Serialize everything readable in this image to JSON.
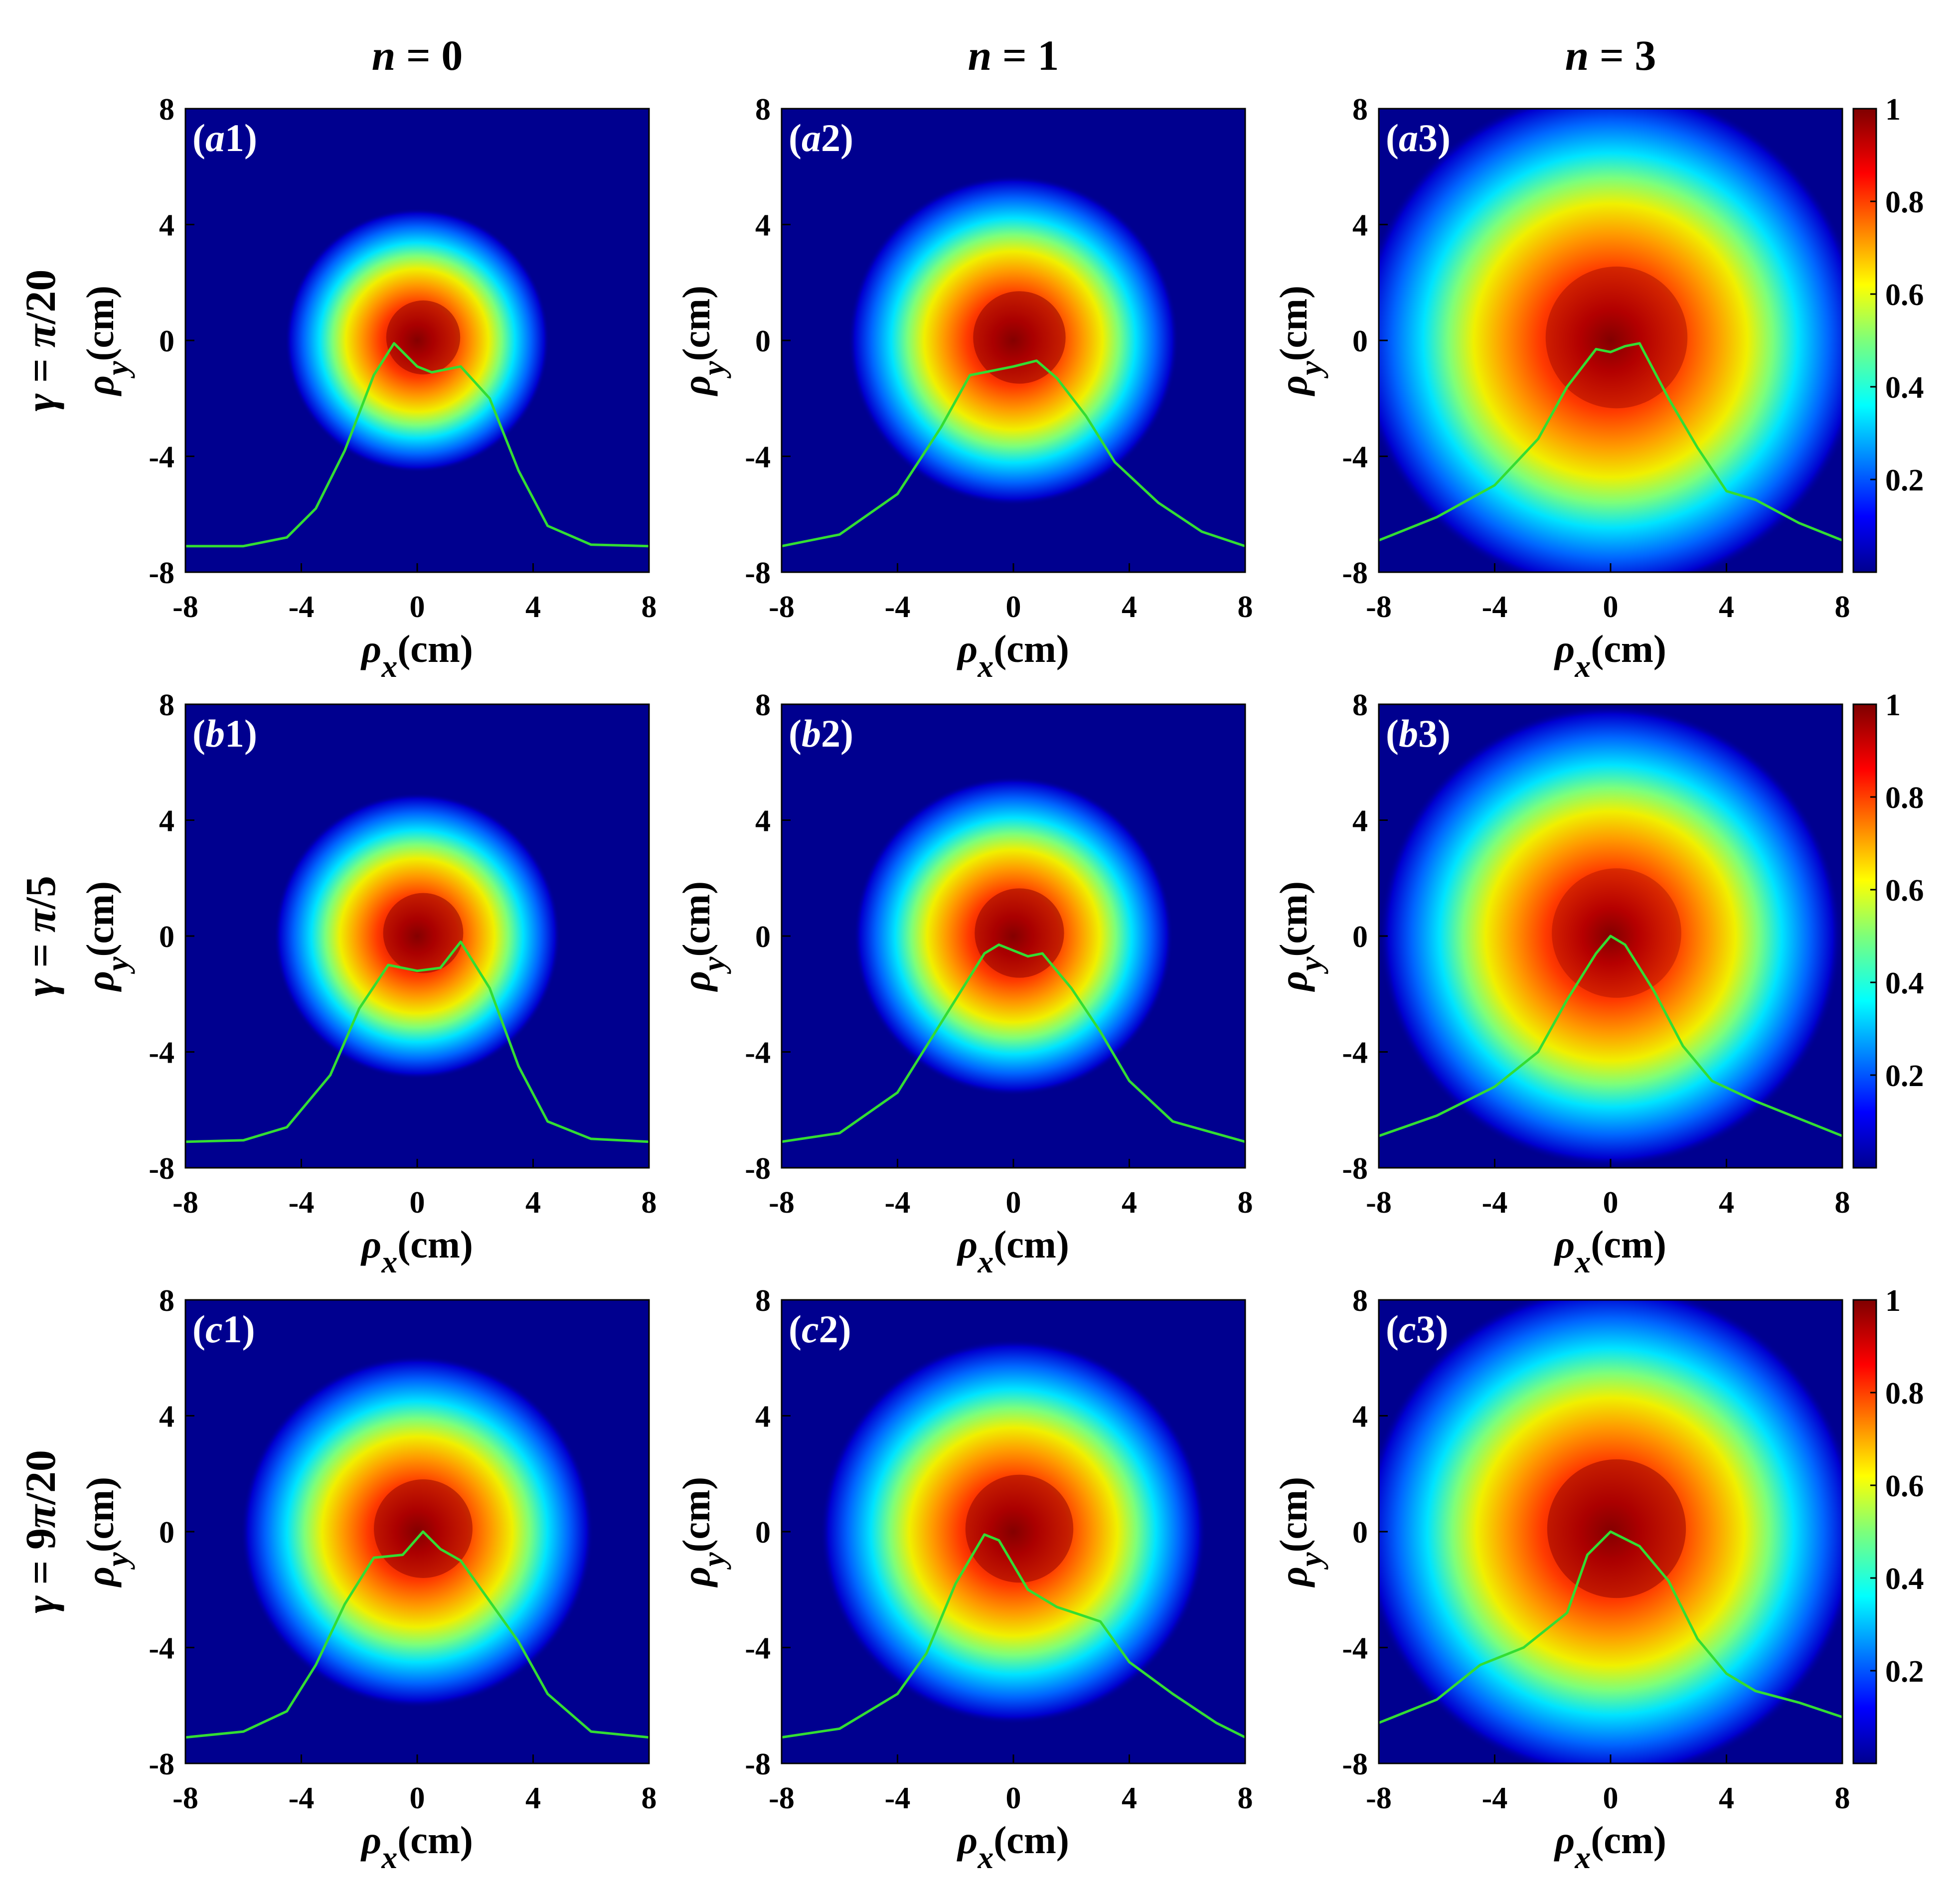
{
  "chart_data": {
    "type": "heatmap",
    "columns": [
      {
        "label": "n = 0",
        "var": "n",
        "eq": " = ",
        "val": "0"
      },
      {
        "label": "n = 1",
        "var": "n",
        "eq": " = ",
        "val": "1"
      },
      {
        "label": "n = 3",
        "var": "n",
        "eq": " = ",
        "val": "3"
      }
    ],
    "rows": [
      {
        "label": "γ = π/20",
        "parts": [
          "γ",
          " = ",
          "π",
          "/20"
        ]
      },
      {
        "label": "γ = π/5",
        "parts": [
          "γ",
          " = ",
          "π",
          "/5"
        ]
      },
      {
        "label": "γ = 9π/20",
        "parts": [
          "γ",
          " = 9",
          "π",
          "/20"
        ]
      }
    ],
    "xlabel": {
      "sym": "ρ",
      "sub": "x",
      "unit": "(cm)"
    },
    "ylabel": {
      "sym": "ρ",
      "sub": "y",
      "unit": "(cm)"
    },
    "xlim": [
      -8,
      8
    ],
    "ylim": [
      -8,
      8
    ],
    "xticks": [
      "-8",
      "-4",
      "0",
      "4",
      "8"
    ],
    "yticks": [
      "8",
      "4",
      "0",
      "-4",
      "-8"
    ],
    "colorbar": {
      "range": [
        0,
        1
      ],
      "ticks": [
        "1",
        "0.8",
        "0.6",
        "0.4",
        "0.2"
      ],
      "colormap": "jet"
    },
    "colors": {
      "profile_line": "#33dd33",
      "panel_label": "#ffffff"
    },
    "panels": [
      {
        "label_pre": "(",
        "label_letter": "a",
        "label_num": "1",
        "label_post": ")",
        "row": 0,
        "col": 0,
        "sigma": 2.4,
        "core": 0.95,
        "profile": [
          [
            -8,
            -7.1
          ],
          [
            -6,
            -7.1
          ],
          [
            -4.5,
            -6.8
          ],
          [
            -3.5,
            -5.8
          ],
          [
            -2.5,
            -3.8
          ],
          [
            -1.5,
            -1.2
          ],
          [
            -0.8,
            -0.1
          ],
          [
            0,
            -0.9
          ],
          [
            0.5,
            -1.1
          ],
          [
            1.5,
            -0.9
          ],
          [
            2.5,
            -2.0
          ],
          [
            3.5,
            -4.5
          ],
          [
            4.5,
            -6.4
          ],
          [
            6,
            -7.05
          ],
          [
            8,
            -7.1
          ]
        ]
      },
      {
        "label_pre": "(",
        "label_letter": "a",
        "label_num": "2",
        "label_post": ")",
        "row": 0,
        "col": 1,
        "sigma": 3.0,
        "core": 0.95,
        "profile": [
          [
            -8,
            -7.1
          ],
          [
            -6,
            -6.7
          ],
          [
            -4,
            -5.3
          ],
          [
            -2.5,
            -3.0
          ],
          [
            -1.5,
            -1.2
          ],
          [
            0,
            -0.9
          ],
          [
            0.8,
            -0.7
          ],
          [
            1.5,
            -1.3
          ],
          [
            2.5,
            -2.6
          ],
          [
            3.5,
            -4.2
          ],
          [
            5,
            -5.6
          ],
          [
            6.5,
            -6.6
          ],
          [
            8,
            -7.1
          ]
        ]
      },
      {
        "label_pre": "(",
        "label_letter": "a",
        "label_num": "3",
        "label_post": ")",
        "row": 0,
        "col": 2,
        "sigma": 4.6,
        "core": 0.7,
        "profile": [
          [
            -8,
            -6.9
          ],
          [
            -6,
            -6.1
          ],
          [
            -4,
            -5.0
          ],
          [
            -2.5,
            -3.4
          ],
          [
            -1.5,
            -1.6
          ],
          [
            -0.5,
            -0.3
          ],
          [
            0,
            -0.4
          ],
          [
            0.5,
            -0.2
          ],
          [
            1,
            -0.1
          ],
          [
            2,
            -2.0
          ],
          [
            3,
            -3.7
          ],
          [
            4,
            -5.2
          ],
          [
            5,
            -5.5
          ],
          [
            6.5,
            -6.3
          ],
          [
            8,
            -6.9
          ]
        ]
      },
      {
        "label_pre": "(",
        "label_letter": "b",
        "label_num": "1",
        "label_post": ")",
        "row": 1,
        "col": 0,
        "sigma": 2.6,
        "core": 0.95,
        "profile": [
          [
            -8,
            -7.1
          ],
          [
            -6,
            -7.05
          ],
          [
            -4.5,
            -6.6
          ],
          [
            -3,
            -4.8
          ],
          [
            -2,
            -2.5
          ],
          [
            -1,
            -1.0
          ],
          [
            0,
            -1.2
          ],
          [
            0.8,
            -1.1
          ],
          [
            1.5,
            -0.2
          ],
          [
            2.5,
            -1.8
          ],
          [
            3.5,
            -4.5
          ],
          [
            4.5,
            -6.4
          ],
          [
            6,
            -7.0
          ],
          [
            8,
            -7.1
          ]
        ]
      },
      {
        "label_pre": "(",
        "label_letter": "b",
        "label_num": "2",
        "label_post": ")",
        "row": 1,
        "col": 1,
        "sigma": 2.9,
        "core": 0.95,
        "profile": [
          [
            -8,
            -7.1
          ],
          [
            -6,
            -6.8
          ],
          [
            -4,
            -5.4
          ],
          [
            -2.5,
            -3.0
          ],
          [
            -1,
            -0.6
          ],
          [
            -0.5,
            -0.3
          ],
          [
            0.5,
            -0.7
          ],
          [
            1,
            -0.6
          ],
          [
            2,
            -1.8
          ],
          [
            3,
            -3.3
          ],
          [
            4,
            -5.0
          ],
          [
            5.5,
            -6.4
          ],
          [
            8,
            -7.1
          ]
        ]
      },
      {
        "label_pre": "(",
        "label_letter": "b",
        "label_num": "3",
        "label_post": ")",
        "row": 1,
        "col": 2,
        "sigma": 4.2,
        "core": 0.6,
        "profile": [
          [
            -8,
            -6.9
          ],
          [
            -6,
            -6.2
          ],
          [
            -4,
            -5.2
          ],
          [
            -2.5,
            -4.0
          ],
          [
            -1.5,
            -2.2
          ],
          [
            -0.5,
            -0.6
          ],
          [
            0,
            0.0
          ],
          [
            0.5,
            -0.3
          ],
          [
            1.5,
            -1.9
          ],
          [
            2.5,
            -3.8
          ],
          [
            3.5,
            -5.0
          ],
          [
            5,
            -5.7
          ],
          [
            6.5,
            -6.3
          ],
          [
            8,
            -6.9
          ]
        ]
      },
      {
        "label_pre": "(",
        "label_letter": "c",
        "label_num": "1",
        "label_post": ")",
        "row": 2,
        "col": 0,
        "sigma": 3.2,
        "core": 0.9,
        "profile": [
          [
            -8,
            -7.1
          ],
          [
            -6,
            -6.9
          ],
          [
            -4.5,
            -6.2
          ],
          [
            -3.5,
            -4.6
          ],
          [
            -2.5,
            -2.5
          ],
          [
            -1.5,
            -0.9
          ],
          [
            -0.5,
            -0.8
          ],
          [
            0.2,
            0.0
          ],
          [
            0.8,
            -0.6
          ],
          [
            1.5,
            -1.0
          ],
          [
            2.5,
            -2.4
          ],
          [
            3.5,
            -3.8
          ],
          [
            4.5,
            -5.6
          ],
          [
            6,
            -6.9
          ],
          [
            8,
            -7.1
          ]
        ]
      },
      {
        "label_pre": "(",
        "label_letter": "c",
        "label_num": "2",
        "label_post": ")",
        "row": 2,
        "col": 1,
        "sigma": 3.5,
        "core": 0.9,
        "profile": [
          [
            -8,
            -7.1
          ],
          [
            -6,
            -6.8
          ],
          [
            -4,
            -5.6
          ],
          [
            -3,
            -4.2
          ],
          [
            -2,
            -1.8
          ],
          [
            -1,
            -0.1
          ],
          [
            -0.5,
            -0.3
          ],
          [
            0.5,
            -2.0
          ],
          [
            1.5,
            -2.6
          ],
          [
            3,
            -3.1
          ],
          [
            4,
            -4.5
          ],
          [
            5.5,
            -5.6
          ],
          [
            7,
            -6.6
          ],
          [
            8,
            -7.1
          ]
        ]
      },
      {
        "label_pre": "(",
        "label_letter": "c",
        "label_num": "3",
        "label_post": ")",
        "row": 2,
        "col": 2,
        "sigma": 4.5,
        "core": 0.9,
        "profile": [
          [
            -8,
            -6.6
          ],
          [
            -6,
            -5.8
          ],
          [
            -4.5,
            -4.6
          ],
          [
            -3,
            -4.0
          ],
          [
            -1.5,
            -2.8
          ],
          [
            -0.8,
            -0.8
          ],
          [
            0,
            0.0
          ],
          [
            1,
            -0.5
          ],
          [
            2,
            -1.7
          ],
          [
            3,
            -3.7
          ],
          [
            4,
            -4.9
          ],
          [
            5,
            -5.5
          ],
          [
            6.5,
            -5.9
          ],
          [
            8,
            -6.4
          ]
        ]
      }
    ]
  }
}
